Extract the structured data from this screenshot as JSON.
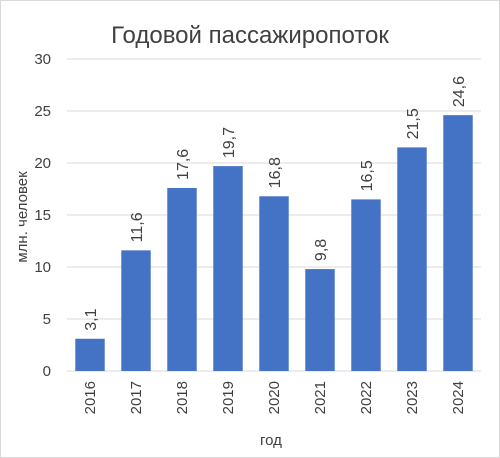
{
  "chart_data": {
    "type": "bar",
    "title": "Годовой пассажиропоток",
    "xlabel": "год",
    "ylabel": "млн. человек",
    "categories": [
      "2016",
      "2017",
      "2018",
      "2019",
      "2020",
      "2021",
      "2022",
      "2023",
      "2024"
    ],
    "values": [
      3.1,
      11.6,
      17.6,
      19.7,
      16.8,
      9.8,
      16.5,
      21.5,
      24.6
    ],
    "data_labels": [
      "3,1",
      "11,6",
      "17,6",
      "19,7",
      "16,8",
      "9,8",
      "16,5",
      "21,5",
      "24,6"
    ],
    "ylim": [
      0,
      30
    ],
    "yticks": [
      0,
      5,
      10,
      15,
      20,
      25,
      30
    ],
    "grid": true,
    "legend": "none",
    "bar_color": "#4472c4",
    "grid_color": "#d9d9d9"
  }
}
